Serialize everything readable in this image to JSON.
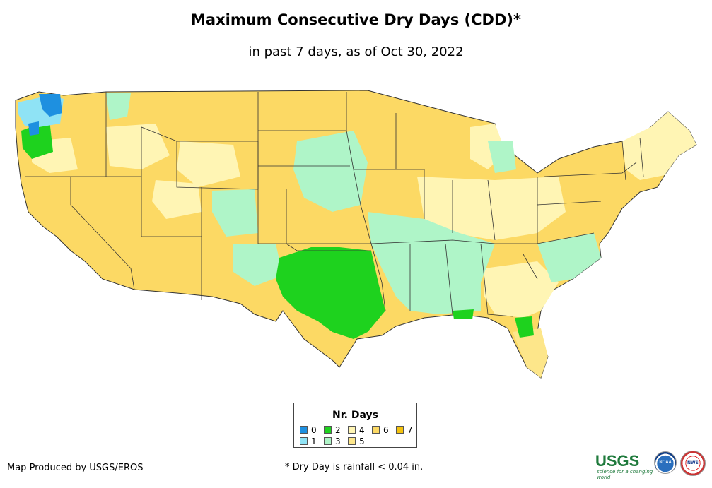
{
  "title": "Maximum Consecutive Dry Days (CDD)*",
  "subtitle": "in past 7 days, as of Oct 30, 2022",
  "legend": {
    "title": "Nr. Days",
    "items": [
      {
        "label": "0",
        "color": "#1e90e0"
      },
      {
        "label": "1",
        "color": "#8fe3f5"
      },
      {
        "label": "2",
        "color": "#1ed21e"
      },
      {
        "label": "3",
        "color": "#aff5c8"
      },
      {
        "label": "4",
        "color": "#fff5b4"
      },
      {
        "label": "5",
        "color": "#fde68a"
      },
      {
        "label": "6",
        "color": "#fcd964"
      },
      {
        "label": "7",
        "color": "#f4c20d"
      }
    ]
  },
  "credit": "Map Produced by USGS/EROS",
  "footnote": "* Dry Day is rainfall < 0.04 in.",
  "logos": {
    "usgs": "USGS",
    "usgs_tagline": "science for a changing world",
    "noaa": "NOAA",
    "nws": "NWS"
  }
}
